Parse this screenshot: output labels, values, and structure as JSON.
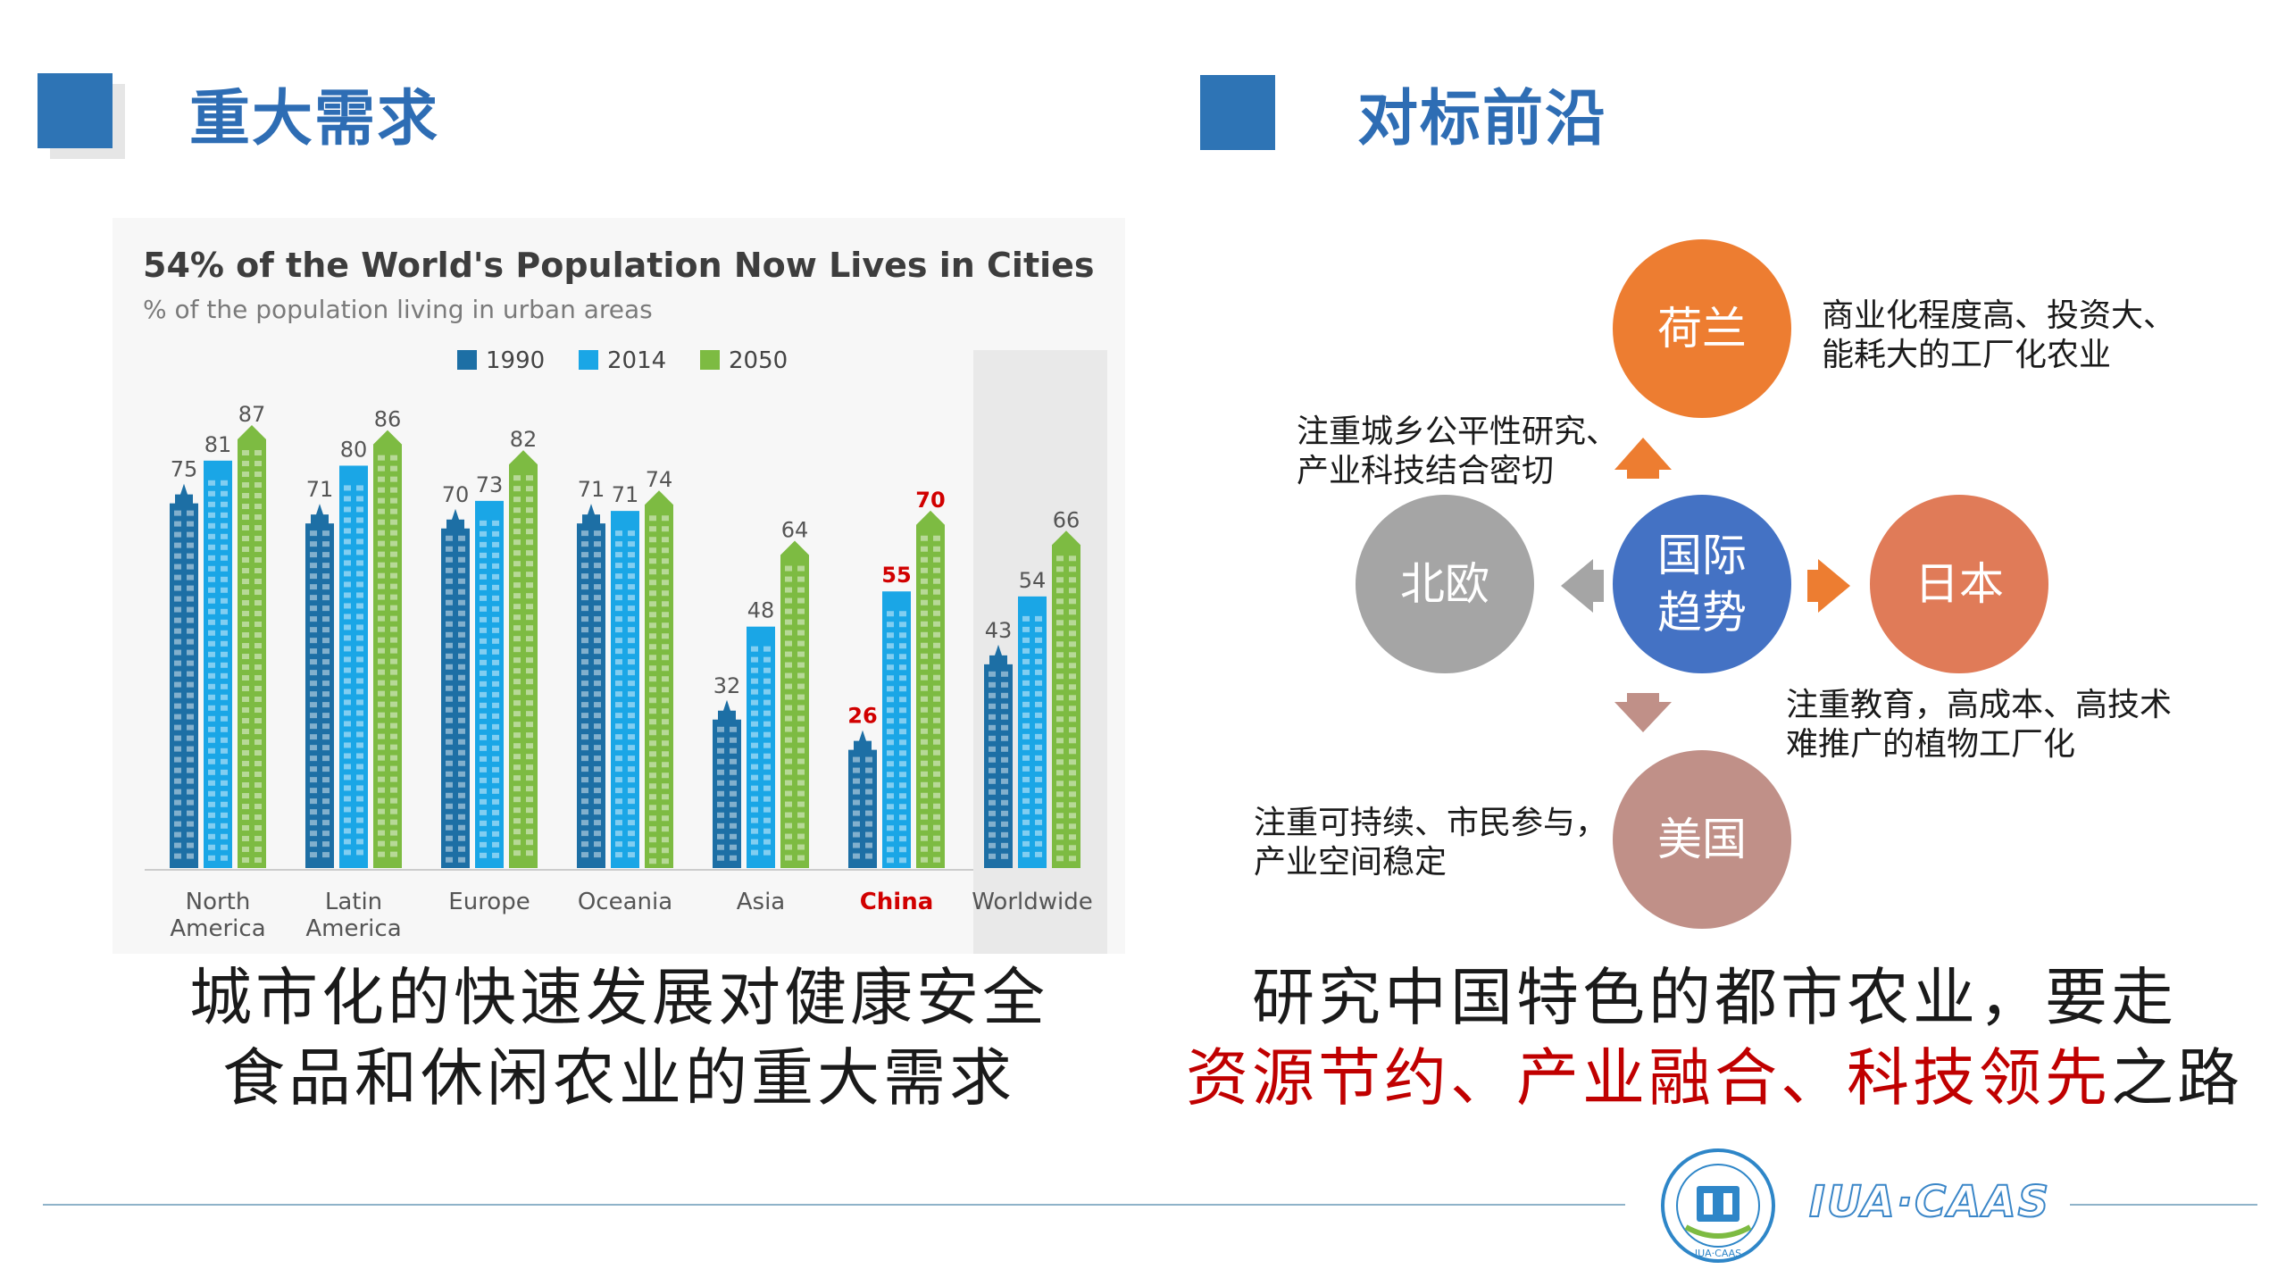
{
  "left_section": {
    "title": "重大需求"
  },
  "right_section": {
    "title": "对标前沿"
  },
  "chart_data": {
    "type": "bar",
    "title": "54% of the World's Population Now Lives in Cities",
    "subtitle": "% of the population living in urban areas",
    "legend": [
      "1990",
      "2014",
      "2050"
    ],
    "categories": [
      "North America",
      "Latin America",
      "Europe",
      "Oceania",
      "Asia",
      "China",
      "Worldwide"
    ],
    "category_lines": [
      [
        "North",
        "America"
      ],
      [
        "Latin",
        "America"
      ],
      [
        "Europe"
      ],
      [
        "Oceania"
      ],
      [
        "Asia"
      ],
      [
        "China"
      ],
      [
        "Worldwide"
      ]
    ],
    "series": [
      {
        "name": "1990",
        "values": [
          75,
          71,
          70,
          71,
          32,
          26,
          43
        ]
      },
      {
        "name": "2014",
        "values": [
          81,
          80,
          73,
          71,
          48,
          55,
          54
        ]
      },
      {
        "name": "2050",
        "values": [
          87,
          86,
          82,
          74,
          64,
          70,
          66
        ]
      }
    ],
    "highlight_category": "China",
    "colors": {
      "1990": "#1d6fa5",
      "2014": "#1aa6e6",
      "2050": "#7dbb42",
      "highlight": "#d10000"
    },
    "ylim": [
      0,
      90
    ]
  },
  "left_caption": [
    "城市化的快速发展对健康安全",
    "食品和休闲农业的重大需求"
  ],
  "diagram": {
    "center": "国际\n趋势",
    "top": "荷兰",
    "left": "北欧",
    "right": "日本",
    "bottom": "美国",
    "notes": {
      "top": "商业化程度高、投资大、\n能耗大的工厂化农业",
      "left": "注重城乡公平性研究、\n产业科技结合密切",
      "right": "注重教育，高成本、高技术\n难推广的植物工厂化",
      "bottom": "注重可持续、市民参与，\n产业空间稳定"
    },
    "colors": {
      "center": "#4472c4",
      "top": "#ed7d31",
      "left": "#a5a5a5",
      "right": "#e07b58",
      "bottom": "#c09088"
    }
  },
  "right_caption": {
    "line1": "研究中国特色的都市农业，要走",
    "line2_red": "资源节约、产业融合、科技领先",
    "line2_end": "之路"
  },
  "footer": {
    "logo_text": "IUA·CAAS",
    "emblem_text": "IUA·CAAS"
  }
}
